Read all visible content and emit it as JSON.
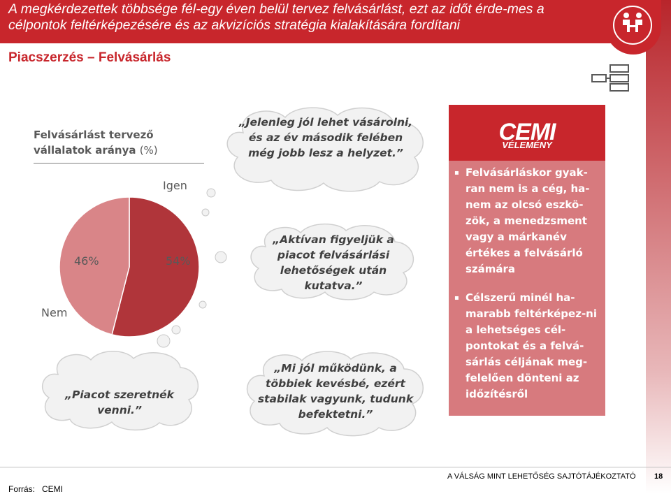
{
  "header": {
    "title": "A megkérdezettek többsége fél-egy éven belül tervez felvásárlást, ezt az időt érde-mes a célpontok feltérképezésére és az akvizíciós stratégia kialakítására fordítani"
  },
  "subtitle": "Piacszerzés – Felvásárlás",
  "chart_title": "Felvásárlást tervező vállalatok aránya",
  "chart_unit": "(%)",
  "chart_data": {
    "type": "pie",
    "title": "Felvásárlást tervező vállalatok aránya (%)",
    "categories": [
      "Igen",
      "Nem"
    ],
    "values": [
      54,
      46
    ],
    "colors": [
      "#b0353a",
      "#d98588"
    ],
    "value_labels": [
      "54%",
      "46%"
    ]
  },
  "clouds": [
    "„Jelenleg jól lehet vásárolni, és az év második felében még jobb lesz a helyzet.”",
    "„Aktívan figyeljük a piacot felvásárlási lehetőségek után kutatva.”",
    "„Mi jól működünk, a többiek kevésbé, ezért stabilak vagyunk, tudunk befektetni.”",
    "„Piacot szeretnék venni.”"
  ],
  "cemi": {
    "logo": "CEMI",
    "sub": "VÉLEMÉNY",
    "bullets": [
      "Felvásárláskor gyak-ran nem is a cég, ha-nem az olcsó eszkö-zök, a menedzsment vagy a márkanév értékes a felvásárló számára",
      "Célszerű minél ha-marabb feltérképez-ni a lehetséges cél-pontokat és a felvá-sárlás céljának meg-felelően dönteni az időzítésről"
    ]
  },
  "footer": {
    "report": "A VÁLSÁG MINT LEHETŐSÉG SAJTÓTÁJÉKOZTATÓ",
    "page": "18",
    "source_label": "Forrás:",
    "source_value": "CEMI"
  },
  "icons": [
    "handshake-icon"
  ],
  "colors": {
    "brand_red": "#c8262c",
    "panel_pink": "#d77a7e"
  }
}
